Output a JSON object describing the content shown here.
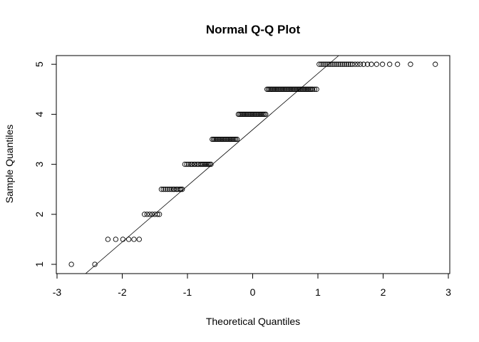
{
  "chart_data": {
    "type": "scatter",
    "title": "Normal Q-Q Plot",
    "xlabel": "Theoretical Quantiles",
    "ylabel": "Sample Quantiles",
    "xlim": [
      -3,
      3
    ],
    "ylim": [
      1,
      5
    ],
    "xticks": [
      -3,
      -2,
      -1,
      0,
      1,
      2,
      3
    ],
    "yticks": [
      1,
      2,
      3,
      4,
      5
    ],
    "grid": false,
    "marker": "open-circle",
    "reference_line": {
      "from": [
        -2.62,
        0.75
      ],
      "to": [
        1.28,
        5.13
      ]
    },
    "levels": [
      {
        "y": 1.0,
        "x": [
          -2.78,
          -2.42
        ]
      },
      {
        "y": 1.5,
        "x": [
          -2.22,
          -2.1,
          -1.99,
          -1.9,
          -1.82,
          -1.74
        ]
      },
      {
        "y": 2.0,
        "x": [
          -1.66,
          -1.62,
          -1.58,
          -1.54,
          -1.5,
          -1.46,
          -1.43
        ]
      },
      {
        "y": 2.5,
        "x": [
          -1.4,
          -1.37,
          -1.34,
          -1.31,
          -1.28,
          -1.25,
          -1.22,
          -1.2,
          -1.17,
          -1.15,
          -1.12,
          -1.1,
          -1.08
        ]
      },
      {
        "y": 3.0,
        "x": [
          -1.04,
          -1.01,
          -0.98,
          -0.95,
          -0.93,
          -0.9,
          -0.88,
          -0.85,
          -0.83,
          -0.8,
          -0.78,
          -0.76,
          -0.74,
          -0.72,
          -0.7,
          -0.68,
          -0.66,
          -0.64
        ]
      },
      {
        "y": 3.5,
        "x": [
          -0.62,
          -0.6,
          -0.58,
          -0.56,
          -0.54,
          -0.52,
          -0.5,
          -0.48,
          -0.46,
          -0.44,
          -0.42,
          -0.4,
          -0.38,
          -0.36,
          -0.34,
          -0.32,
          -0.3,
          -0.28,
          -0.26,
          -0.24
        ]
      },
      {
        "y": 4.0,
        "x": [
          -0.22,
          -0.2,
          -0.18,
          -0.16,
          -0.14,
          -0.12,
          -0.1,
          -0.08,
          -0.06,
          -0.04,
          -0.02,
          0.0,
          0.02,
          0.04,
          0.06,
          0.08,
          0.1,
          0.12,
          0.14,
          0.16,
          0.18,
          0.2
        ]
      },
      {
        "y": 4.5,
        "x": [
          0.22,
          0.24,
          0.26,
          0.28,
          0.3,
          0.32,
          0.34,
          0.36,
          0.38,
          0.4,
          0.42,
          0.44,
          0.46,
          0.48,
          0.5,
          0.52,
          0.54,
          0.56,
          0.58,
          0.6,
          0.62,
          0.64,
          0.66,
          0.68,
          0.7,
          0.72,
          0.74,
          0.76,
          0.78,
          0.8,
          0.82,
          0.84,
          0.86,
          0.88,
          0.9,
          0.92,
          0.95,
          0.98
        ]
      },
      {
        "y": 5.0,
        "x": [
          1.02,
          1.05,
          1.08,
          1.11,
          1.14,
          1.17,
          1.2,
          1.23,
          1.26,
          1.29,
          1.32,
          1.35,
          1.38,
          1.41,
          1.44,
          1.47,
          1.5,
          1.53,
          1.57,
          1.61,
          1.65,
          1.7,
          1.76,
          1.82,
          1.9,
          1.99,
          2.1,
          2.22,
          2.42,
          2.8
        ]
      }
    ]
  }
}
